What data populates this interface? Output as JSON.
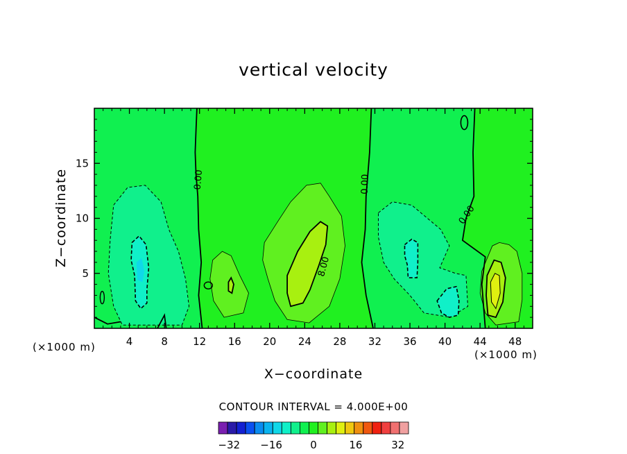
{
  "chart_data": {
    "type": "contour",
    "title": "vertical velocity",
    "xlabel": "X−coordinate",
    "ylabel": "Z−coordinate",
    "x_unit": "(×1000 m)",
    "y_unit": "(×1000 m)",
    "xlim": [
      0,
      50
    ],
    "ylim": [
      0,
      20
    ],
    "x_ticks": [
      4,
      8,
      12,
      16,
      20,
      24,
      28,
      32,
      36,
      40,
      44,
      48
    ],
    "y_ticks": [
      5,
      10,
      15
    ],
    "contour_interval_text": "CONTOUR INTERVAL = 4.000E+00",
    "contour_labels": [
      {
        "text": "0.00",
        "x": 11.9,
        "y": 13.5,
        "rot": -85
      },
      {
        "text": "0.00",
        "x": 30.9,
        "y": 13.1,
        "rot": -88
      },
      {
        "text": "0.00",
        "x": 42.5,
        "y": 10.3,
        "rot": -55
      },
      {
        "text": "8.00",
        "x": 26.2,
        "y": 5.6,
        "rot": -75
      }
    ],
    "colorbar": {
      "min": -36,
      "max": 36,
      "step": 4,
      "tick_values": [
        -32,
        -16,
        0,
        16,
        32
      ],
      "colors": [
        "#7a1fb0",
        "#2a1aa8",
        "#1320d2",
        "#0a50f0",
        "#0a8cf0",
        "#0ab4f0",
        "#10d8e8",
        "#10f0c8",
        "#10f08c",
        "#10f050",
        "#20f020",
        "#60f020",
        "#a8f010",
        "#e0f010",
        "#f0c810",
        "#f09010",
        "#f05810",
        "#f02010",
        "#f04040",
        "#f07070",
        "#f0a0a0"
      ]
    },
    "field_colors": {
      "neg12": "#10d8e8",
      "neg8": "#10f0c8",
      "neg4": "#10f08c",
      "neg0": "#10f050",
      "pos0": "#20f020",
      "pos4": "#60f020",
      "pos8": "#a8f010",
      "pos12": "#e0f010"
    }
  }
}
